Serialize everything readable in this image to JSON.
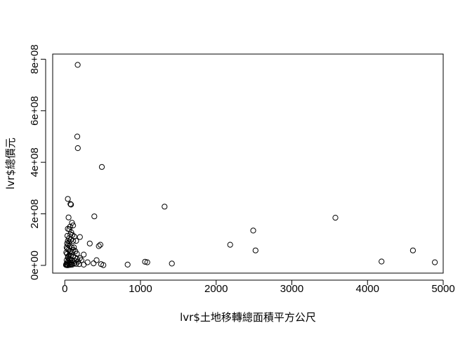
{
  "chart_data": {
    "type": "scatter",
    "title": "",
    "xlabel": "lvr$土地移轉總面積平方公尺",
    "ylabel": "lvr$總價元",
    "xlim": [
      -160,
      5000
    ],
    "ylim": [
      -30000000,
      820000000
    ],
    "xticks": [
      0,
      1000,
      2000,
      3000,
      4000,
      5000
    ],
    "xtick_labels": [
      "0",
      "1000",
      "2000",
      "3000",
      "4000",
      "5000"
    ],
    "yticks": [
      0,
      200000000,
      400000000,
      600000000,
      800000000
    ],
    "ytick_labels": [
      "0e+00",
      "2e+08",
      "4e+08",
      "6e+08",
      "8e+08"
    ],
    "grid": false,
    "point_style": "open-circle",
    "points": [
      [
        170,
        778000000
      ],
      [
        165,
        500000000
      ],
      [
        172,
        455000000
      ],
      [
        490,
        382000000
      ],
      [
        40,
        258000000
      ],
      [
        75,
        238000000
      ],
      [
        82,
        236000000
      ],
      [
        1318,
        228000000
      ],
      [
        390,
        190000000
      ],
      [
        3575,
        185000000
      ],
      [
        50,
        186000000
      ],
      [
        2490,
        135000000
      ],
      [
        95,
        165000000
      ],
      [
        110,
        155000000
      ],
      [
        70,
        150000000
      ],
      [
        40,
        142000000
      ],
      [
        60,
        140000000
      ],
      [
        85,
        128000000
      ],
      [
        75,
        120000000
      ],
      [
        100,
        118000000
      ],
      [
        125,
        112000000
      ],
      [
        200,
        110000000
      ],
      [
        35,
        115000000
      ],
      [
        55,
        105000000
      ],
      [
        80,
        100000000
      ],
      [
        110,
        95000000
      ],
      [
        150,
        95000000
      ],
      [
        60,
        92000000
      ],
      [
        330,
        85000000
      ],
      [
        2185,
        80000000
      ],
      [
        470,
        80000000
      ],
      [
        450,
        75000000
      ],
      [
        2520,
        58000000
      ],
      [
        4600,
        58000000
      ],
      [
        115,
        60000000
      ],
      [
        140,
        55000000
      ],
      [
        30,
        85000000
      ],
      [
        45,
        80000000
      ],
      [
        65,
        75000000
      ],
      [
        90,
        70000000
      ],
      [
        120,
        70000000
      ],
      [
        35,
        65000000
      ],
      [
        50,
        60000000
      ],
      [
        70,
        55000000
      ],
      [
        95,
        50000000
      ],
      [
        160,
        45000000
      ],
      [
        250,
        42000000
      ],
      [
        30,
        45000000
      ],
      [
        60,
        40000000
      ],
      [
        80,
        38000000
      ],
      [
        110,
        35000000
      ],
      [
        140,
        30000000
      ],
      [
        200,
        28000000
      ],
      [
        40,
        30000000
      ],
      [
        55,
        25000000
      ],
      [
        75,
        22000000
      ],
      [
        100,
        20000000
      ],
      [
        130,
        18000000
      ],
      [
        175,
        15000000
      ],
      [
        300,
        12000000
      ],
      [
        25,
        20000000
      ],
      [
        45,
        15000000
      ],
      [
        65,
        12000000
      ],
      [
        90,
        10000000
      ],
      [
        120,
        8000000
      ],
      [
        150,
        6000000
      ],
      [
        190,
        5000000
      ],
      [
        250,
        3000000
      ],
      [
        30,
        10000000
      ],
      [
        50,
        8000000
      ],
      [
        70,
        6000000
      ],
      [
        85,
        4000000
      ],
      [
        100,
        3000000
      ],
      [
        20,
        5000000
      ],
      [
        35,
        3000000
      ],
      [
        15,
        2000000
      ],
      [
        25,
        1000000
      ],
      [
        40,
        500000
      ],
      [
        60,
        1500000
      ],
      [
        80,
        2500000
      ],
      [
        45,
        35000000
      ],
      [
        20,
        50000000
      ],
      [
        25,
        70000000
      ],
      [
        40,
        95000000
      ],
      [
        380,
        8000000
      ],
      [
        420,
        20000000
      ],
      [
        480,
        5000000
      ],
      [
        510,
        1000000
      ],
      [
        830,
        3000000
      ],
      [
        1060,
        14000000
      ],
      [
        1090,
        12000000
      ],
      [
        1415,
        7000000
      ],
      [
        4185,
        15000000
      ],
      [
        4890,
        12000000
      ],
      [
        220,
        20000000
      ],
      [
        160,
        25000000
      ]
    ]
  }
}
